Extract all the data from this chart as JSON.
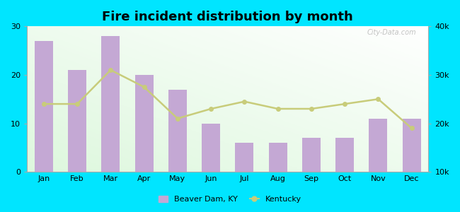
{
  "title": "Fire incident distribution by month",
  "months": [
    "Jan",
    "Feb",
    "Mar",
    "Apr",
    "May",
    "Jun",
    "Jul",
    "Aug",
    "Sep",
    "Oct",
    "Nov",
    "Dec"
  ],
  "beaver_dam": [
    27,
    21,
    28,
    20,
    17,
    10,
    6,
    6,
    7,
    7,
    11,
    11
  ],
  "kentucky": [
    24000,
    24000,
    31000,
    27500,
    21000,
    23000,
    24500,
    23000,
    23000,
    24000,
    25000,
    19000
  ],
  "bar_color": "#c4a8d4",
  "line_color": "#c8cc7a",
  "outer_background": "#00e5ff",
  "left_ylim": [
    0,
    30
  ],
  "right_ylim": [
    10000,
    40000
  ],
  "left_yticks": [
    0,
    10,
    20,
    30
  ],
  "right_yticks": [
    10000,
    20000,
    30000,
    40000
  ],
  "right_yticklabels": [
    "10k",
    "20k",
    "30k",
    "40k"
  ],
  "watermark": "City-Data.com",
  "legend_beaver": "Beaver Dam, KY",
  "legend_kentucky": "Kentucky",
  "title_fontsize": 13,
  "tick_fontsize": 8
}
